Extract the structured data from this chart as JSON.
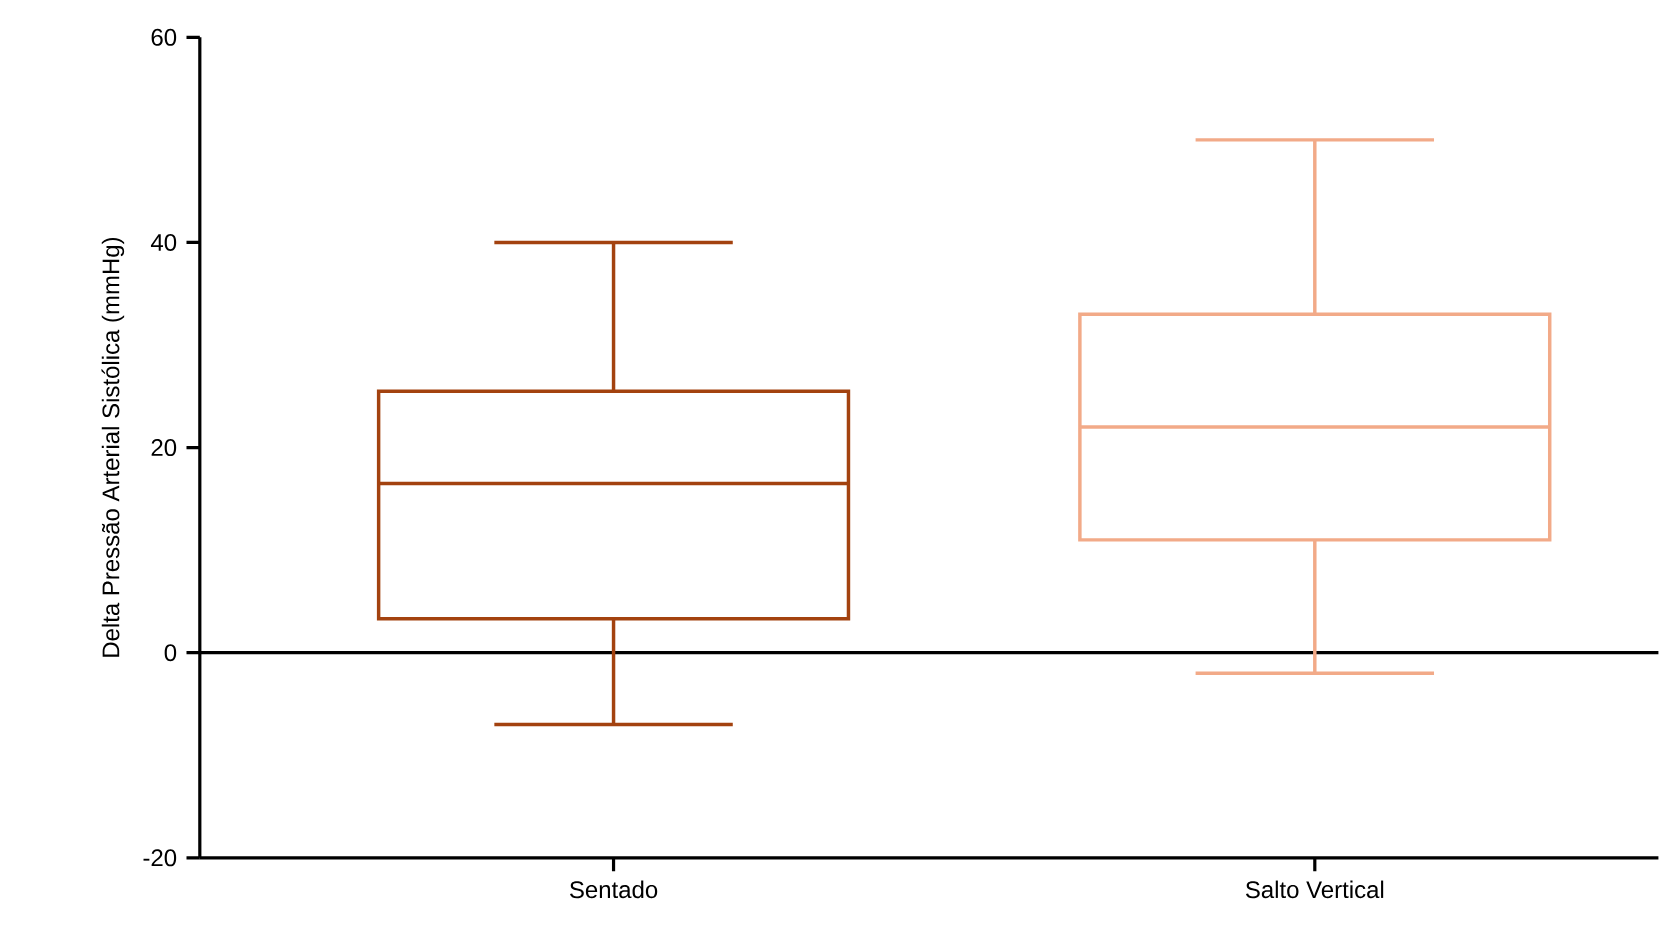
{
  "chart_data": {
    "type": "box",
    "ylabel": "Delta Pressão Arterial Sistólica  (mmHg)",
    "categories": [
      "Sentado",
      "Salto Vertical"
    ],
    "boxes": [
      {
        "low": -7,
        "q1": 3.3,
        "median": 16.5,
        "q3": 25.5,
        "high": 40
      },
      {
        "low": -2,
        "q1": 11,
        "median": 22,
        "q3": 33,
        "high": 50
      }
    ],
    "colors": [
      "#a3420f",
      "#f2aa88"
    ],
    "ylim": [
      -20,
      60
    ],
    "yticks": [
      -20,
      0,
      20,
      40,
      60
    ],
    "ref_lines": [
      {
        "axis": "y",
        "value": 0,
        "color": "#000000"
      }
    ],
    "grid": false
  }
}
